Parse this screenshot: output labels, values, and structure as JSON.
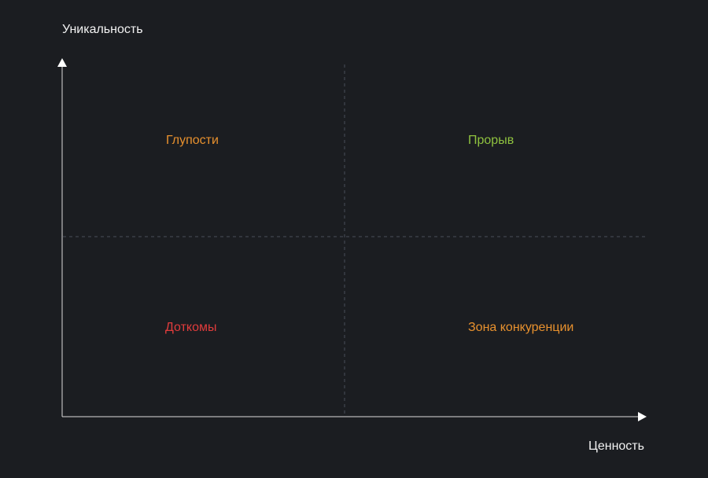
{
  "axes": {
    "y_label": "Уникальность",
    "x_label": "Ценность"
  },
  "quadrants": {
    "top_left": {
      "label": "Глупости",
      "color": "#e8912e"
    },
    "top_right": {
      "label": "Прорыв",
      "color": "#8fc23f"
    },
    "bottom_left": {
      "label": "Доткомы",
      "color": "#e03c3c"
    },
    "bottom_right": {
      "label": "Зона конкуренции",
      "color": "#e8912e"
    }
  },
  "colors": {
    "background": "#1b1d21",
    "axis": "#dcdcdc",
    "divider": "#4a4f59",
    "text": "#f2f2f2"
  }
}
